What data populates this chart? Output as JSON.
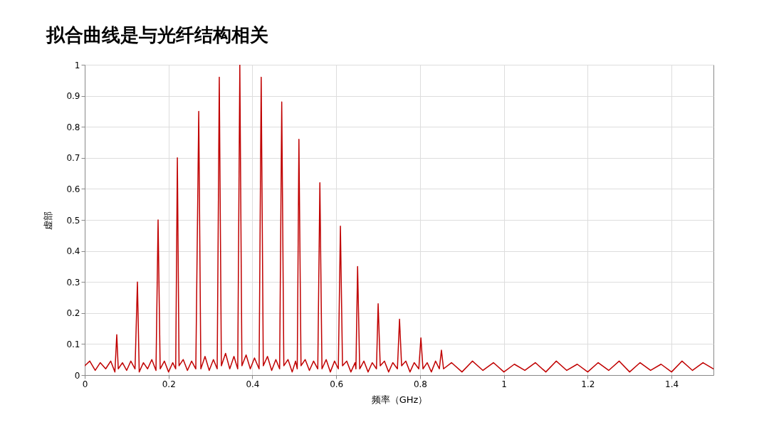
{
  "chart_data": {
    "type": "line",
    "title": "拟合曲线是与光纤结构相关",
    "xlabel": "频率（GHz）",
    "ylabel": "虚部",
    "x": [
      0,
      0.012,
      0.025,
      0.037,
      0.05,
      0.062,
      0.072,
      0.0764,
      0.08,
      0.09,
      0.1,
      0.11,
      0.12,
      0.1257,
      0.13,
      0.14,
      0.15,
      0.16,
      0.17,
      0.175,
      0.18,
      0.19,
      0.2,
      0.21,
      0.217,
      0.221,
      0.225,
      0.235,
      0.245,
      0.255,
      0.265,
      0.272,
      0.277,
      0.287,
      0.297,
      0.307,
      0.316,
      0.321,
      0.326,
      0.336,
      0.346,
      0.356,
      0.365,
      0.37,
      0.375,
      0.385,
      0.395,
      0.405,
      0.416,
      0.421,
      0.426,
      0.436,
      0.446,
      0.456,
      0.465,
      0.47,
      0.475,
      0.485,
      0.495,
      0.503,
      0.507,
      0.511,
      0.516,
      0.526,
      0.536,
      0.546,
      0.556,
      0.561,
      0.566,
      0.576,
      0.586,
      0.596,
      0.605,
      0.61,
      0.615,
      0.625,
      0.635,
      0.645,
      0.647,
      0.651,
      0.656,
      0.666,
      0.676,
      0.686,
      0.696,
      0.7,
      0.705,
      0.715,
      0.725,
      0.735,
      0.746,
      0.751,
      0.756,
      0.766,
      0.776,
      0.786,
      0.797,
      0.802,
      0.807,
      0.817,
      0.827,
      0.837,
      0.846,
      0.851,
      0.856,
      0.875,
      0.9,
      0.925,
      0.95,
      0.975,
      1.0,
      1.025,
      1.05,
      1.075,
      1.1,
      1.125,
      1.15,
      1.175,
      1.2,
      1.225,
      1.25,
      1.275,
      1.3,
      1.325,
      1.35,
      1.375,
      1.4,
      1.425,
      1.45,
      1.475,
      1.5
    ],
    "series": [
      {
        "color": "#c00000",
        "values": [
          0.03,
          0.045,
          0.015,
          0.04,
          0.02,
          0.045,
          0.01,
          0.13,
          0.02,
          0.04,
          0.015,
          0.045,
          0.02,
          0.3,
          0.01,
          0.04,
          0.02,
          0.05,
          0.015,
          0.5,
          0.02,
          0.045,
          0.01,
          0.04,
          0.02,
          0.7,
          0.03,
          0.05,
          0.015,
          0.045,
          0.02,
          0.85,
          0.02,
          0.06,
          0.015,
          0.05,
          0.02,
          0.96,
          0.03,
          0.07,
          0.02,
          0.06,
          0.02,
          1.0,
          0.03,
          0.065,
          0.02,
          0.055,
          0.02,
          0.96,
          0.03,
          0.06,
          0.015,
          0.05,
          0.02,
          0.88,
          0.03,
          0.05,
          0.01,
          0.045,
          0.02,
          0.76,
          0.03,
          0.05,
          0.015,
          0.045,
          0.02,
          0.62,
          0.02,
          0.05,
          0.01,
          0.045,
          0.02,
          0.48,
          0.03,
          0.045,
          0.01,
          0.04,
          0.02,
          0.35,
          0.02,
          0.045,
          0.01,
          0.04,
          0.02,
          0.23,
          0.03,
          0.045,
          0.01,
          0.04,
          0.02,
          0.18,
          0.03,
          0.045,
          0.01,
          0.04,
          0.02,
          0.12,
          0.02,
          0.04,
          0.01,
          0.045,
          0.02,
          0.08,
          0.02,
          0.04,
          0.01,
          0.045,
          0.015,
          0.04,
          0.01,
          0.035,
          0.015,
          0.04,
          0.01,
          0.045,
          0.015,
          0.035,
          0.01,
          0.04,
          0.015,
          0.045,
          0.01,
          0.04,
          0.015,
          0.035,
          0.01,
          0.045,
          0.015,
          0.04,
          0.02
        ]
      }
    ],
    "xlim": [
      0,
      1.5
    ],
    "xticks": [
      0,
      0.2,
      0.4,
      0.6,
      0.8,
      1,
      1.2,
      1.4
    ],
    "ylim": [
      0,
      1
    ],
    "yticks": [
      0,
      0.1,
      0.2,
      0.3,
      0.4,
      0.5,
      0.6,
      0.7,
      0.8,
      0.9,
      1
    ],
    "grid": true,
    "marker": "none",
    "line_style": "solid"
  }
}
